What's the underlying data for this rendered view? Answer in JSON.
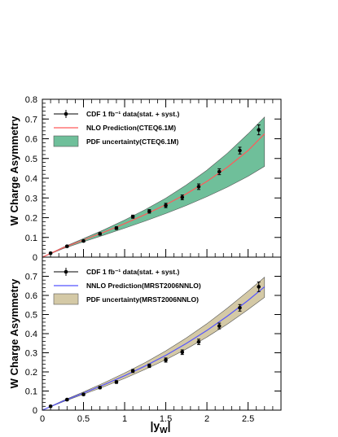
{
  "chart_data": [
    {
      "type": "line",
      "panel": "top",
      "ylabel": "W Charge Asymmetry",
      "xlabel": "",
      "xlim": [
        0,
        2.9
      ],
      "ylim": [
        0,
        0.8
      ],
      "y_ticks": [
        "0",
        "0.1",
        "0.2",
        "0.3",
        "0.4",
        "0.5",
        "0.6",
        "0.7",
        "0.8"
      ],
      "grid": false,
      "legend_position": "top-left",
      "legend": {
        "data": "CDF 1 fb⁻¹ data(stat. + syst.)",
        "prediction": "NLO Prediction(CTEQ6.1M)",
        "band": "PDF uncertainty(CTEQ6.1M)"
      },
      "data_points": {
        "x": [
          0.1,
          0.3,
          0.5,
          0.7,
          0.9,
          1.1,
          1.3,
          1.5,
          1.7,
          1.9,
          2.15,
          2.4,
          2.63
        ],
        "y": [
          0.02,
          0.055,
          0.082,
          0.118,
          0.147,
          0.205,
          0.232,
          0.262,
          0.303,
          0.357,
          0.433,
          0.54,
          0.645
        ],
        "err": [
          0.004,
          0.005,
          0.005,
          0.006,
          0.007,
          0.008,
          0.009,
          0.011,
          0.012,
          0.014,
          0.015,
          0.017,
          0.025
        ]
      },
      "prediction": {
        "color": "#ff5a5a",
        "x": [
          0,
          0.25,
          0.5,
          0.75,
          1.0,
          1.25,
          1.5,
          1.75,
          2.0,
          2.25,
          2.5,
          2.7
        ],
        "y": [
          0.0,
          0.047,
          0.087,
          0.127,
          0.17,
          0.216,
          0.266,
          0.321,
          0.384,
          0.456,
          0.54,
          0.625
        ]
      },
      "band": {
        "color": "#6fbf9a",
        "x": [
          0,
          0.25,
          0.5,
          0.75,
          1.0,
          1.25,
          1.5,
          1.75,
          2.0,
          2.25,
          2.5,
          2.7
        ],
        "lower": [
          0.0,
          0.043,
          0.078,
          0.112,
          0.147,
          0.183,
          0.221,
          0.262,
          0.307,
          0.355,
          0.41,
          0.46
        ],
        "upper": [
          0.0,
          0.05,
          0.094,
          0.139,
          0.188,
          0.241,
          0.299,
          0.366,
          0.441,
          0.527,
          0.625,
          0.71
        ]
      }
    },
    {
      "type": "line",
      "panel": "bottom",
      "ylabel": "W Charge Asymmetry",
      "xlabel": "|y_W|",
      "xlim": [
        0,
        2.9
      ],
      "ylim": [
        0,
        0.8
      ],
      "y_ticks": [
        "0",
        "0.1",
        "0.2",
        "0.3",
        "0.4",
        "0.5",
        "0.6",
        "0.7"
      ],
      "x_ticks": [
        "0",
        "0.5",
        "1",
        "1.5",
        "2",
        "2.5"
      ],
      "grid": false,
      "legend_position": "top-left",
      "legend": {
        "data": "CDF 1 fb⁻¹ data(stat. + syst.)",
        "prediction": "NNLO Prediction(MRST2006NNLO)",
        "band": "PDF uncertainty(MRST2006NNLO)"
      },
      "data_points": {
        "x": [
          0.1,
          0.3,
          0.5,
          0.7,
          0.9,
          1.1,
          1.3,
          1.5,
          1.7,
          1.9,
          2.15,
          2.4,
          2.63
        ],
        "y": [
          0.02,
          0.055,
          0.082,
          0.118,
          0.147,
          0.205,
          0.232,
          0.262,
          0.303,
          0.357,
          0.44,
          0.535,
          0.645
        ],
        "err": [
          0.004,
          0.005,
          0.005,
          0.006,
          0.007,
          0.008,
          0.009,
          0.011,
          0.012,
          0.014,
          0.015,
          0.017,
          0.025
        ]
      },
      "prediction": {
        "color": "#5555ff",
        "x": [
          0,
          0.25,
          0.5,
          0.75,
          1.0,
          1.25,
          1.5,
          1.75,
          2.0,
          2.25,
          2.5,
          2.7
        ],
        "y": [
          0.0,
          0.047,
          0.089,
          0.133,
          0.18,
          0.231,
          0.287,
          0.349,
          0.417,
          0.492,
          0.574,
          0.645
        ]
      },
      "band": {
        "color": "#d4c9a6",
        "x": [
          0,
          0.25,
          0.5,
          0.75,
          1.0,
          1.25,
          1.5,
          1.75,
          2.0,
          2.25,
          2.5,
          2.7
        ],
        "lower": [
          0.0,
          0.044,
          0.083,
          0.123,
          0.166,
          0.213,
          0.264,
          0.32,
          0.382,
          0.45,
          0.526,
          0.59
        ],
        "upper": [
          0.0,
          0.05,
          0.095,
          0.143,
          0.194,
          0.249,
          0.31,
          0.378,
          0.452,
          0.534,
          0.622,
          0.695
        ]
      }
    }
  ]
}
